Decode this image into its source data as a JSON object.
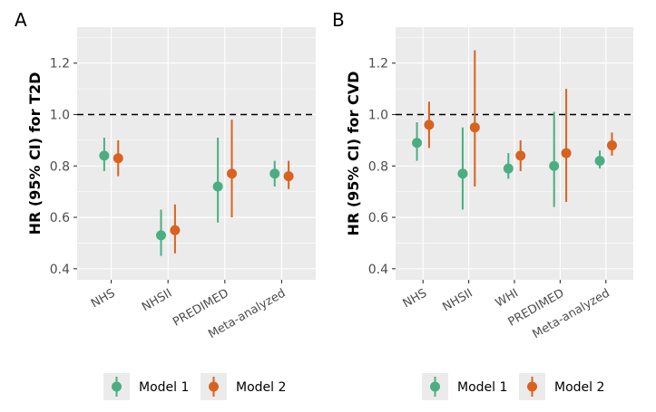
{
  "chart_data": [
    {
      "type": "scatter",
      "subtype": "pointrange",
      "panel_tag": "A",
      "title": "",
      "xlabel": "",
      "ylabel": "HR (95% CI) for T2D",
      "ylim": [
        0.357,
        1.34
      ],
      "yticks": [
        0.4,
        0.6,
        0.8,
        1.0,
        1.2
      ],
      "ytick_labels": [
        "0.4",
        "0.6",
        "0.8",
        "1.0",
        "1.2"
      ],
      "reference_line": 1.0,
      "grid": true,
      "categories": [
        "NHS",
        "NHSII",
        "PREDIMED",
        "Meta-analyzed"
      ],
      "series": [
        {
          "name": "Model 1",
          "color": "#4BAE82",
          "values": [
            0.84,
            0.53,
            0.72,
            0.77
          ],
          "lower": [
            0.78,
            0.45,
            0.58,
            0.72
          ],
          "upper": [
            0.91,
            0.63,
            0.91,
            0.82
          ]
        },
        {
          "name": "Model 2",
          "color": "#D9621E",
          "values": [
            0.83,
            0.55,
            0.77,
            0.76
          ],
          "lower": [
            0.76,
            0.46,
            0.6,
            0.71
          ],
          "upper": [
            0.9,
            0.65,
            0.98,
            0.82
          ]
        }
      ],
      "legend": {
        "position": "bottom",
        "entries": [
          "Model 1",
          "Model 2"
        ]
      }
    },
    {
      "type": "scatter",
      "subtype": "pointrange",
      "panel_tag": "B",
      "title": "",
      "xlabel": "",
      "ylabel": "HR (95% CI) for CVD",
      "ylim": [
        0.357,
        1.34
      ],
      "yticks": [
        0.4,
        0.6,
        0.8,
        1.0,
        1.2
      ],
      "ytick_labels": [
        "0.4",
        "0.6",
        "0.8",
        "1.0",
        "1.2"
      ],
      "reference_line": 1.0,
      "grid": true,
      "categories": [
        "NHS",
        "NHSII",
        "WHI",
        "PREDIMED",
        "Meta-analyzed"
      ],
      "series": [
        {
          "name": "Model 1",
          "color": "#4BAE82",
          "values": [
            0.89,
            0.77,
            0.79,
            0.8,
            0.82
          ],
          "lower": [
            0.82,
            0.63,
            0.75,
            0.64,
            0.79
          ],
          "upper": [
            0.97,
            0.95,
            0.85,
            1.01,
            0.86
          ]
        },
        {
          "name": "Model 2",
          "color": "#D9621E",
          "values": [
            0.96,
            0.95,
            0.84,
            0.85,
            0.88
          ],
          "lower": [
            0.87,
            0.72,
            0.78,
            0.66,
            0.84
          ],
          "upper": [
            1.05,
            1.25,
            0.9,
            1.1,
            0.93
          ]
        }
      ],
      "legend": {
        "position": "bottom",
        "entries": [
          "Model 1",
          "Model 2"
        ]
      }
    }
  ]
}
